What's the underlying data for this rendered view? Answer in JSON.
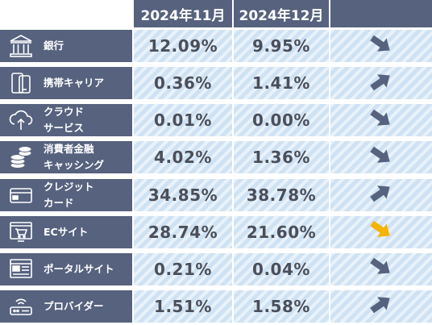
{
  "header": {
    "col1": "2024年11月",
    "col2": "2024年12月",
    "col3": ""
  },
  "colors": {
    "header_bg": "#56627e",
    "cell_bg": "#cfe2f3",
    "arrow_normal": "#56627e",
    "arrow_highlight": "#f5b400"
  },
  "rows": [
    {
      "label": "銀行",
      "icon": "bank-icon",
      "nov": "12.09%",
      "dec": "9.95%",
      "trend": "down"
    },
    {
      "label": "携帯キャリア",
      "icon": "smartphone-icon",
      "nov": "0.36%",
      "dec": "1.41%",
      "trend": "up"
    },
    {
      "label": "クラウド\nサービス",
      "icon": "cloud-upload-icon",
      "nov": "0.01%",
      "dec": "0.00%",
      "trend": "down"
    },
    {
      "label": "消費者金融\nキャッシング",
      "icon": "coins-icon",
      "nov": "4.02%",
      "dec": "1.36%",
      "trend": "down"
    },
    {
      "label": "クレジット\nカード",
      "icon": "credit-card-icon",
      "nov": "34.85%",
      "dec": "38.78%",
      "trend": "up"
    },
    {
      "label": "ECサイト",
      "icon": "shopping-cart-icon",
      "nov": "28.74%",
      "dec": "21.60%",
      "trend": "down-highlight"
    },
    {
      "label": "ポータルサイト",
      "icon": "web-browser-icon",
      "nov": "0.21%",
      "dec": "0.04%",
      "trend": "down"
    },
    {
      "label": "プロバイダー",
      "icon": "router-icon",
      "nov": "1.51%",
      "dec": "1.58%",
      "trend": "up"
    }
  ]
}
